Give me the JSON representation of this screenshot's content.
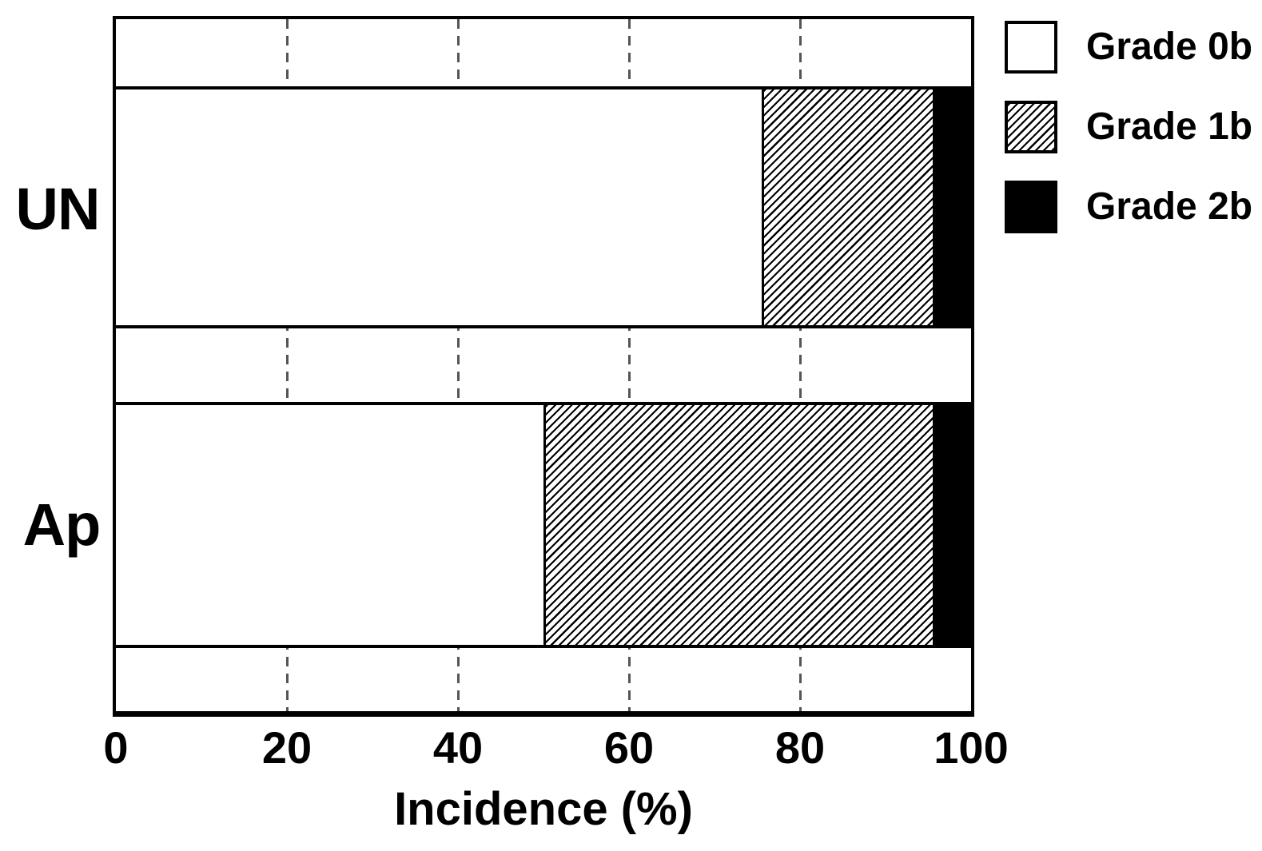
{
  "chart_data": {
    "type": "bar",
    "orientation": "horizontal",
    "stacked": true,
    "title": "",
    "xlabel": "Incidence (%)",
    "ylabel": "",
    "xlim": [
      0,
      100
    ],
    "xticks": [
      0,
      20,
      40,
      60,
      80,
      100
    ],
    "grid_x": [
      20,
      40,
      60,
      80
    ],
    "grid_style": "dashed-vertical",
    "categories": [
      "UN",
      "Ap"
    ],
    "series": [
      {
        "name": "Grade 0b",
        "fill": "white",
        "values": [
          75.5,
          50.0
        ]
      },
      {
        "name": "Grade 1b",
        "fill": "diagonal-hatch",
        "values": [
          20.0,
          45.5
        ]
      },
      {
        "name": "Grade 2b",
        "fill": "black",
        "values": [
          4.5,
          4.5
        ]
      }
    ],
    "legend_position": "top-right"
  },
  "legend": {
    "items": [
      {
        "label": "Grade 0b",
        "swatch": "white"
      },
      {
        "label": "Grade 1b",
        "swatch": "diagonal-hatch"
      },
      {
        "label": "Grade 2b",
        "swatch": "black"
      }
    ]
  },
  "colors": {
    "foreground": "#000000",
    "background": "#ffffff",
    "gridline": "#555555",
    "hatch_line": "#000000"
  }
}
